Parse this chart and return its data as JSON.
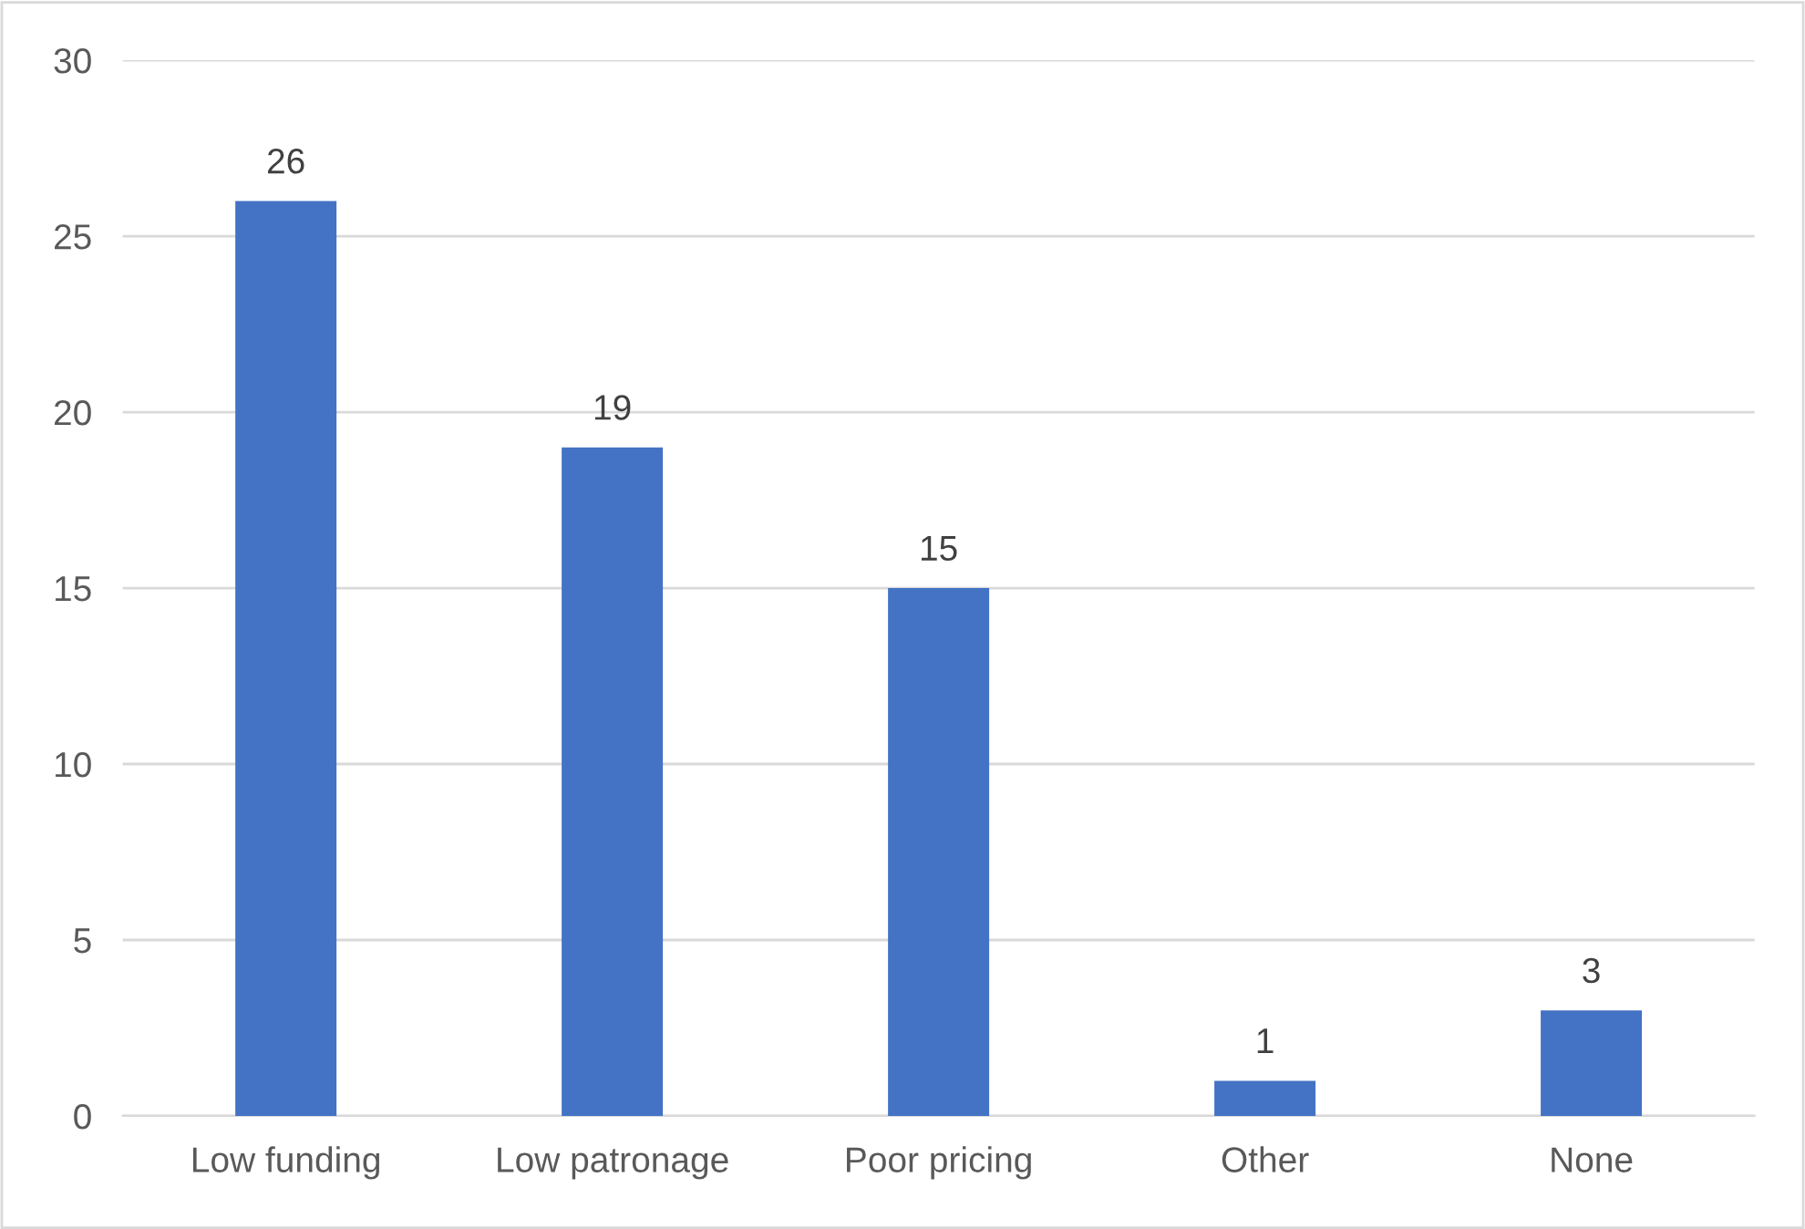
{
  "chart_data": {
    "type": "bar",
    "categories": [
      "Low funding",
      "Low patronage",
      "Poor pricing",
      "Other",
      "None"
    ],
    "values": [
      26,
      19,
      15,
      1,
      3
    ],
    "color": "#4472c4",
    "ylim": [
      0,
      30
    ],
    "yticks": [
      0,
      5,
      10,
      15,
      20,
      25,
      30
    ],
    "grid": "y",
    "data_labels": true,
    "legend": false
  }
}
